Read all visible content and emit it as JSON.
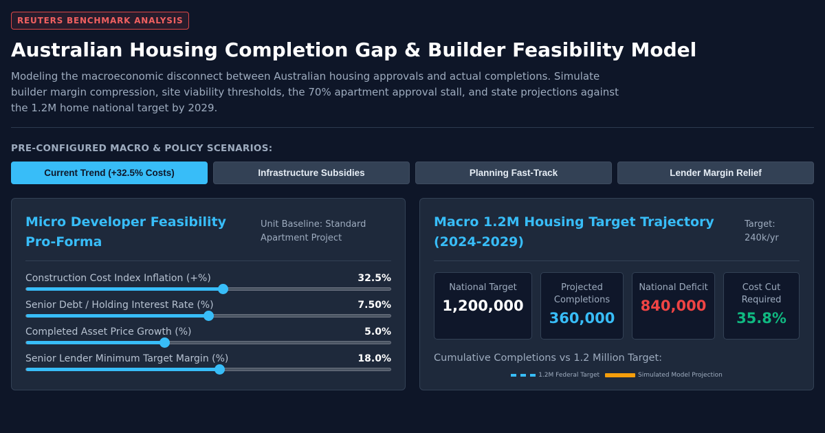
{
  "header": {
    "tag": "REUTERS BENCHMARK ANALYSIS",
    "title": "Australian Housing Completion Gap & Builder Feasibility Model",
    "subtitle": "Modeling the macroeconomic disconnect between Australian housing approvals and actual completions. Simulate builder margin compression, site viability thresholds, the 70% apartment approval stall, and state projections against the 1.2M home national target by 2029."
  },
  "scenarios": {
    "label": "PRE-CONFIGURED MACRO & POLICY SCENARIOS:",
    "buttons": [
      {
        "label": "Current Trend (+32.5% Costs)",
        "active": true
      },
      {
        "label": "Infrastructure Subsidies",
        "active": false
      },
      {
        "label": "Planning Fast-Track",
        "active": false
      },
      {
        "label": "Lender Margin Relief",
        "active": false
      }
    ]
  },
  "left_panel": {
    "title": "Micro Developer Feasibility Pro-Forma",
    "note": "Unit Baseline: Standard Apartment Project",
    "sliders": [
      {
        "label": "Construction Cost Index Inflation (+%)",
        "value": "32.5%",
        "fraction": 0.54
      },
      {
        "label": "Senior Debt / Holding Interest Rate (%)",
        "value": "7.50%",
        "fraction": 0.5
      },
      {
        "label": "Completed Asset Price Growth (%)",
        "value": "5.0%",
        "fraction": 0.38
      },
      {
        "label": "Senior Lender Minimum Target Margin (%)",
        "value": "18.0%",
        "fraction": 0.53
      }
    ]
  },
  "right_panel": {
    "title": "Macro 1.2M Housing Target Trajectory (2024-2029)",
    "note": "Target: 240k/yr",
    "kpis": [
      {
        "label": "National Target",
        "value": "1,200,000",
        "color": "#ffffff"
      },
      {
        "label": "Projected Completions",
        "value": "360,000",
        "color": "#38bdf8"
      },
      {
        "label": "National Deficit",
        "value": "840,000",
        "color": "#ef4444"
      },
      {
        "label": "Cost Cut Required",
        "value": "35.8%",
        "color": "#10b981"
      }
    ],
    "chart_label": "Cumulative Completions vs 1.2 Million Target:",
    "legend": [
      "1.2M Federal Target",
      "Simulated Model Projection"
    ]
  },
  "colors": {
    "accent": "#38bdf8",
    "danger": "#ef4444",
    "success": "#10b981",
    "warning": "#f59e0b"
  }
}
